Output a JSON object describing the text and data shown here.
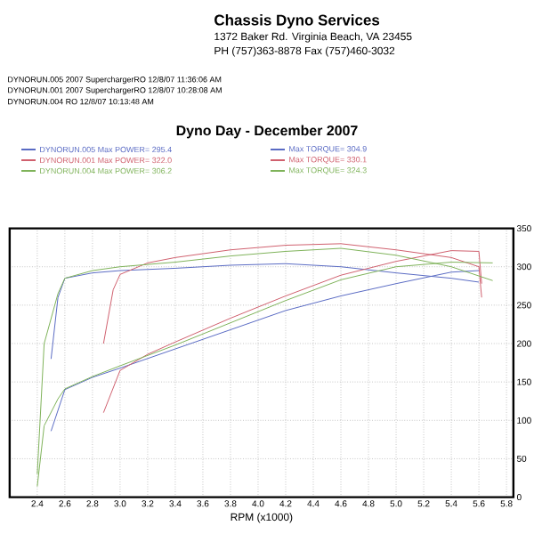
{
  "chart_data": {
    "type": "line",
    "title": "Dyno Day - December 2007",
    "xlabel": "RPM (x1000)",
    "annotations": [
      "Chassis Dyno Services",
      "1372 Baker Rd. Virginia Beach, VA 23455",
      "PH (757)363-8878 Fax (757)460-3032",
      "DYNORUN.005  2007 SuperchargerRO  12/8/07 11:36:06 AM",
      "DYNORUN.001  2007 SuperchargerRO  12/8/07 10:28:08 AM",
      "DYNORUN.004  RO  12/8/07 10:13:48 AM"
    ],
    "xlim": [
      2.2,
      5.85
    ],
    "ylim": [
      0,
      350
    ],
    "xticks": [
      2.4,
      2.6,
      2.8,
      {
        "value": 3.0,
        "label": "3.0"
      },
      3.2,
      3.4,
      3.6,
      3.8,
      {
        "value": 4.0,
        "label": "4.0"
      },
      4.2,
      4.4,
      4.6,
      4.8,
      {
        "value": 5.0,
        "label": "5.0"
      },
      5.2,
      5.4,
      5.6,
      5.8
    ],
    "yticks": [
      0,
      50,
      100,
      150,
      200,
      250,
      300,
      350
    ],
    "grid": true,
    "legend": "top",
    "marker": "none",
    "line_style": "solid",
    "series": [
      {
        "name": "DYNORUN.005  Max POWER= 295.4",
        "color": "#5a6bc4",
        "x": [
          2.5,
          2.6,
          2.8,
          3.0,
          3.4,
          3.8,
          4.2,
          4.6,
          5.0,
          5.4,
          5.6
        ],
        "values": [
          86,
          140,
          156,
          168,
          193,
          218,
          243,
          262,
          278,
          293,
          295
        ]
      },
      {
        "name": "Max TORQUE= 304.9",
        "color": "#5a6bc4",
        "x": [
          2.5,
          2.55,
          2.6,
          2.8,
          3.0,
          3.4,
          3.8,
          4.2,
          4.6,
          5.0,
          5.4,
          5.6
        ],
        "values": [
          180,
          260,
          285,
          292,
          295,
          298,
          302,
          304,
          300,
          292,
          285,
          280
        ]
      },
      {
        "name": "DYNORUN.001  Max POWER= 322.0",
        "color": "#d0606e",
        "x": [
          2.88,
          3.0,
          3.2,
          3.4,
          3.8,
          4.2,
          4.6,
          5.0,
          5.4,
          5.6,
          5.62
        ],
        "values": [
          110,
          165,
          186,
          202,
          233,
          262,
          289,
          307,
          321,
          320,
          278
        ]
      },
      {
        "name": "Max TORQUE= 330.1",
        "color": "#d0606e",
        "x": [
          2.88,
          2.95,
          3.0,
          3.2,
          3.4,
          3.8,
          4.2,
          4.6,
          5.0,
          5.4,
          5.6,
          5.62
        ],
        "values": [
          200,
          270,
          290,
          305,
          312,
          322,
          328,
          330,
          322,
          312,
          300,
          260
        ]
      },
      {
        "name": "DYNORUN.004  Max POWER= 306.2",
        "color": "#7fb35a",
        "x": [
          2.4,
          2.45,
          2.55,
          2.6,
          2.8,
          3.0,
          3.4,
          3.8,
          4.2,
          4.6,
          5.0,
          5.4,
          5.7
        ],
        "values": [
          14,
          93,
          128,
          141,
          157,
          171,
          198,
          227,
          256,
          283,
          300,
          306,
          305
        ]
      },
      {
        "name": "Max TORQUE= 324.3",
        "color": "#7fb35a",
        "x": [
          2.4,
          2.45,
          2.55,
          2.6,
          2.8,
          3.0,
          3.4,
          3.8,
          4.2,
          4.6,
          5.0,
          5.4,
          5.7
        ],
        "values": [
          30,
          200,
          265,
          285,
          295,
          300,
          306,
          314,
          320,
          324,
          315,
          300,
          282
        ]
      }
    ]
  }
}
